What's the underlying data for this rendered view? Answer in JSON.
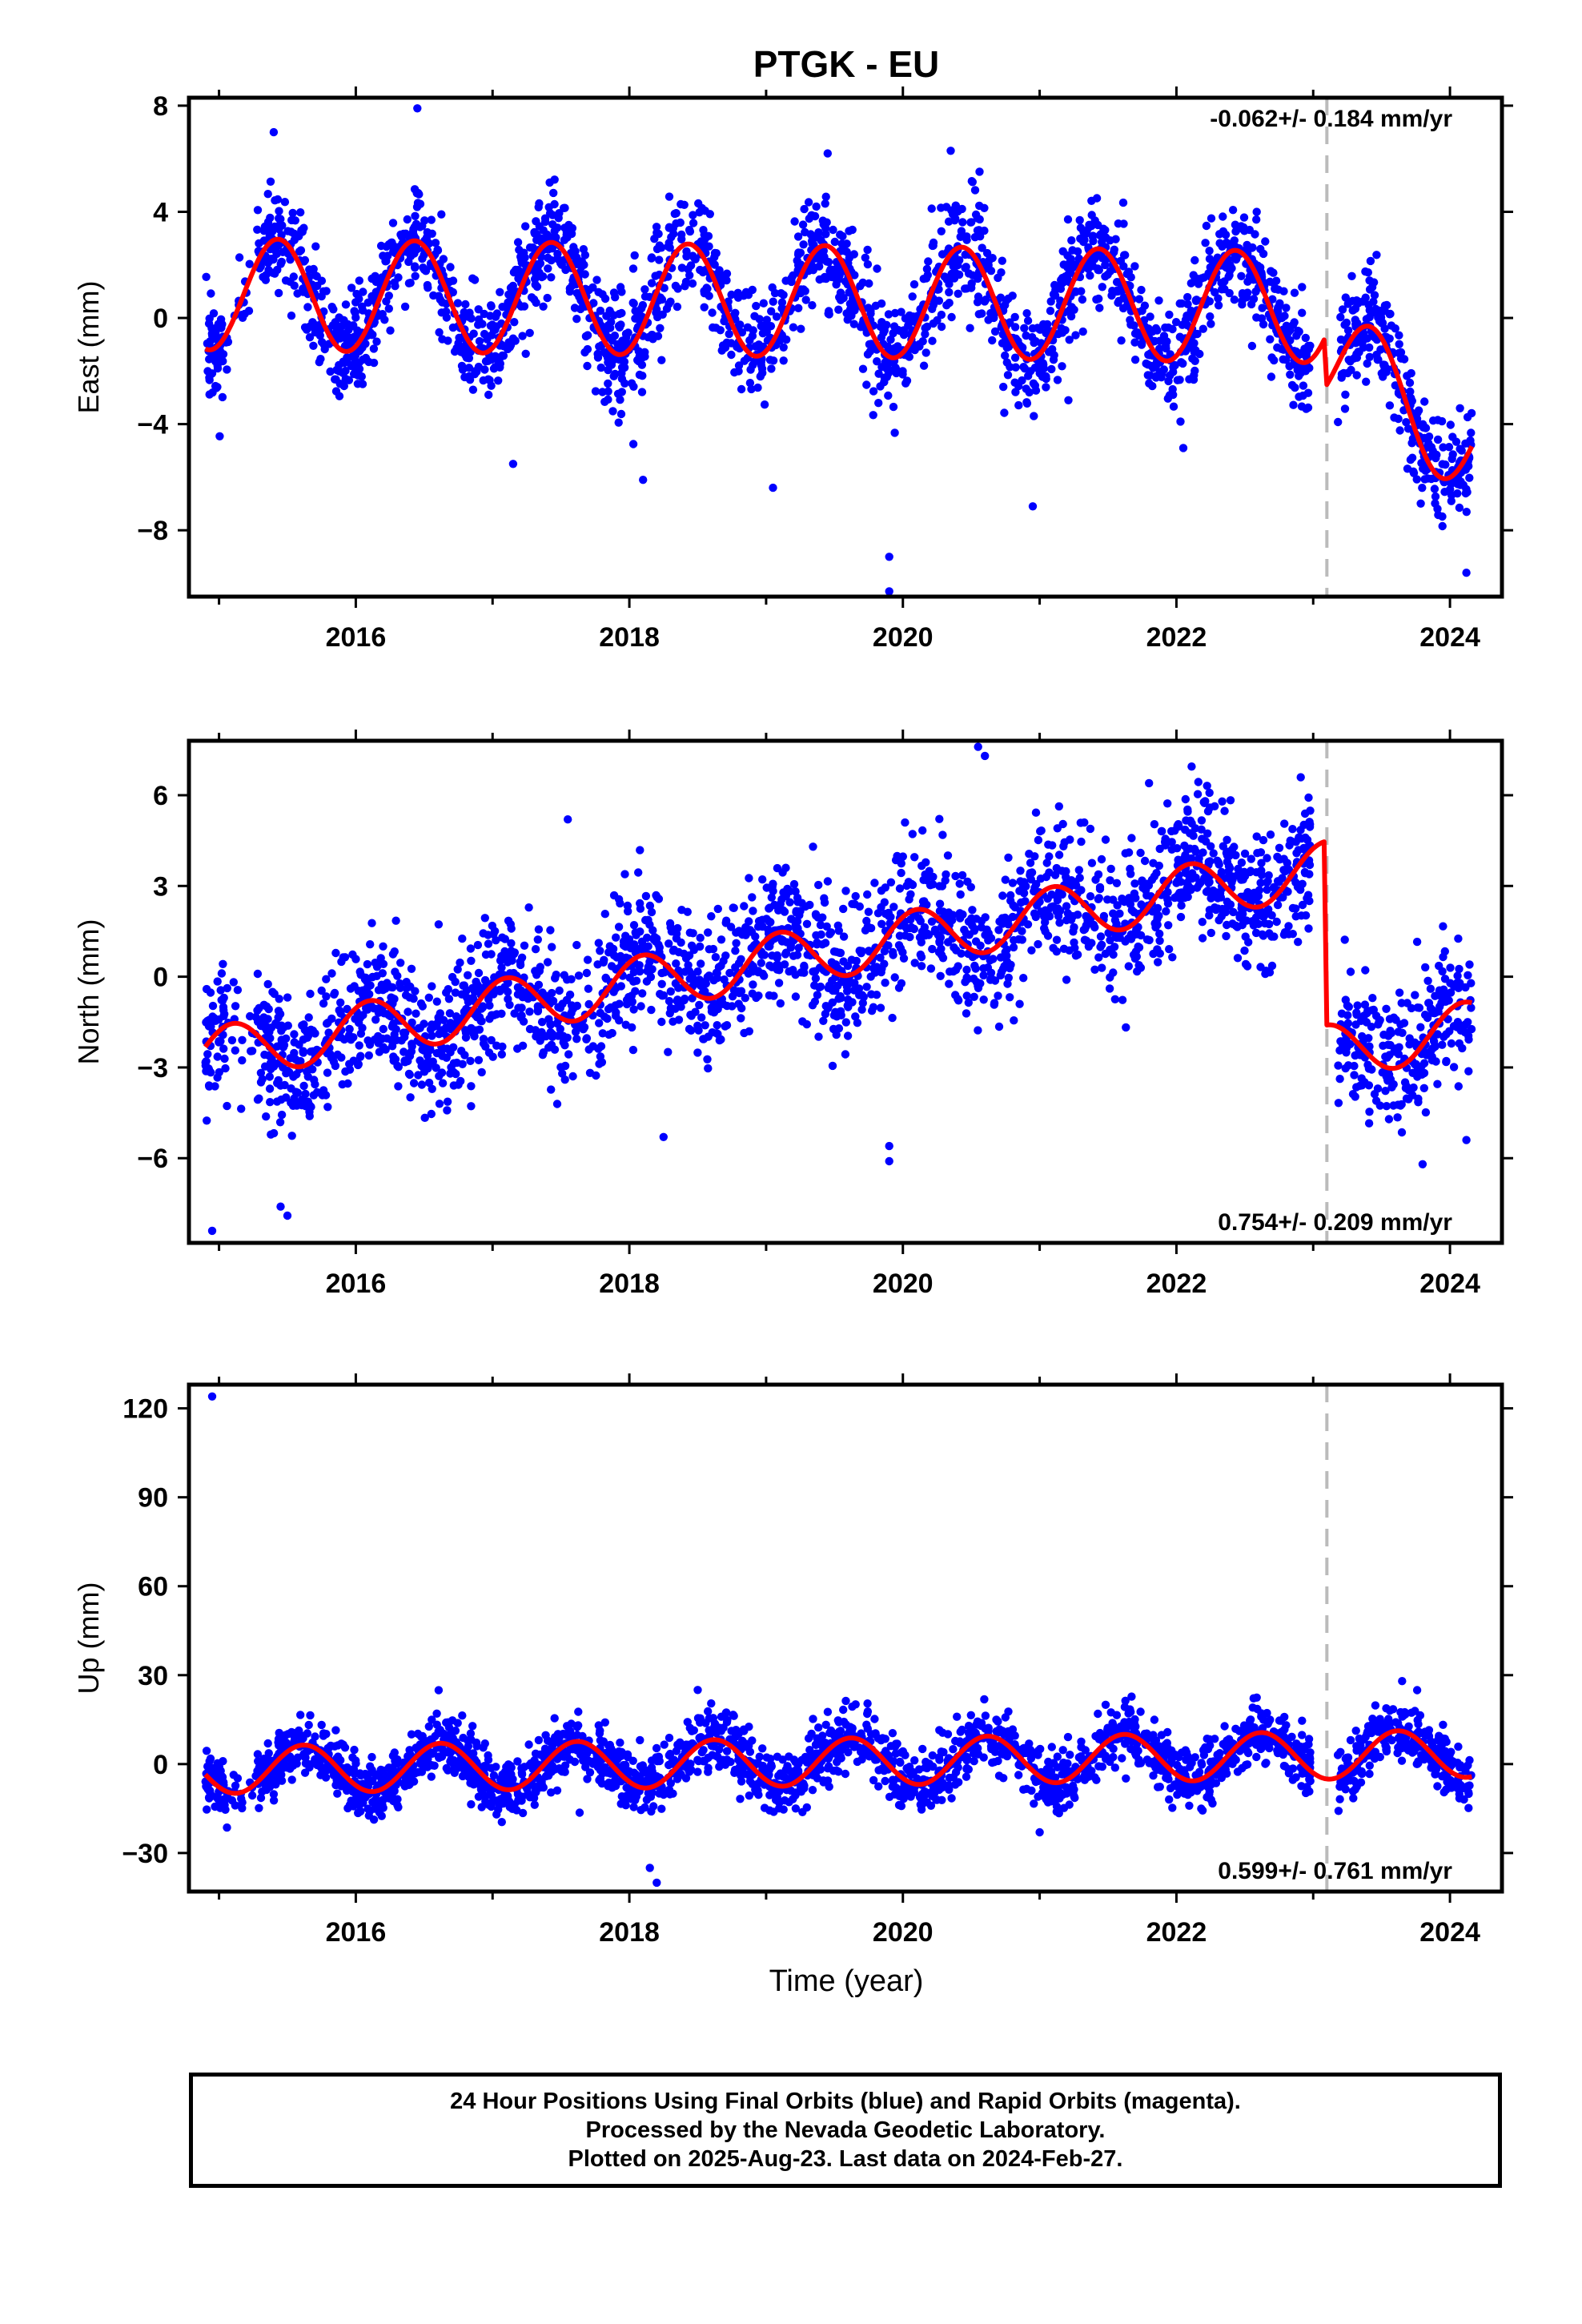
{
  "title": "PTGK - EU",
  "xlabel": "Time (year)",
  "footer": {
    "line1": "24 Hour Positions Using Final Orbits (blue) and Rapid Orbits (magenta).",
    "line2": "Processed by the Nevada Geodetic Laboratory.",
    "line3": "Plotted on 2025-Aug-23. Last data on 2024-Feb-27."
  },
  "colors": {
    "points": "#0000ff",
    "model": "#ff0000",
    "event_line": "#bbbbbb",
    "axis": "#000000"
  },
  "chart_data": [
    {
      "type": "scatter",
      "component": "East",
      "ylabel": "East (mm)",
      "rate_label": "-0.062+/- 0.184 mm/yr",
      "rate_position": "top-right",
      "xlim": [
        2014.78,
        2024.38
      ],
      "ylim": [
        -10.5,
        8.3
      ],
      "x_ticks": [
        2016,
        2018,
        2020,
        2022,
        2024
      ],
      "x_tick_labels": [
        "2016",
        "2018",
        "2020",
        "2022",
        "2024"
      ],
      "y_ticks": [
        -8,
        -4,
        0,
        4,
        8
      ],
      "y_tick_labels": [
        "−8",
        "−4",
        "0",
        "4",
        "8"
      ],
      "event_line_x": 2023.1,
      "model": {
        "segments": [
          {
            "from": 2014.9,
            "to": 2023.08,
            "offset": 0.9,
            "slope": -0.06,
            "amp": 2.1,
            "peak": 2015.43
          },
          {
            "from": 2023.1,
            "to": 2024.16,
            "offset": -1.5,
            "slope": -2.9,
            "amp": 2.1,
            "peak": 2023.43
          }
        ]
      },
      "series": [
        {
          "points_approx": true,
          "x_range": [
            2014.9,
            2024.16
          ],
          "scatter_sd": 1.0,
          "outliers": [
            [
              2015.4,
              7.0
            ],
            [
              2016.45,
              7.9
            ],
            [
              2019.45,
              6.2
            ],
            [
              2020.35,
              6.3
            ],
            [
              2019.9,
              -9.0
            ],
            [
              2019.9,
              -10.3
            ],
            [
              2020.95,
              -7.1
            ],
            [
              2018.1,
              -6.1
            ],
            [
              2019.05,
              -6.4
            ],
            [
              2024.12,
              -9.6
            ],
            [
              2017.15,
              -5.5
            ],
            [
              2022.05,
              -4.9
            ]
          ]
        }
      ]
    },
    {
      "type": "scatter",
      "component": "North",
      "ylabel": "North (mm)",
      "rate_label": "0.754+/- 0.209 mm/yr",
      "rate_position": "bottom-right",
      "xlim": [
        2014.78,
        2024.38
      ],
      "ylim": [
        -8.8,
        7.8
      ],
      "x_ticks": [
        2016,
        2018,
        2020,
        2022,
        2024
      ],
      "x_tick_labels": [
        "2016",
        "2018",
        "2020",
        "2022",
        "2024"
      ],
      "y_ticks": [
        -6,
        -3,
        0,
        3,
        6
      ],
      "y_tick_labels": [
        "−6",
        "−3",
        "0",
        "3",
        "6"
      ],
      "event_line_x": 2023.1,
      "model": {
        "segments": [
          {
            "from": 2014.9,
            "to": 2023.08,
            "offset": -2.6,
            "slope": 0.754,
            "amp": 0.9,
            "peak": 2015.1
          },
          {
            "from": 2023.1,
            "to": 2024.16,
            "offset": -2.5,
            "slope": 0.754,
            "amp": 0.9,
            "peak": 2024.1
          }
        ]
      },
      "series": [
        {
          "points_approx": true,
          "x_range": [
            2014.9,
            2024.16
          ],
          "scatter_sd": 1.1,
          "outliers": [
            [
              2014.95,
              -8.4
            ],
            [
              2015.5,
              -7.9
            ],
            [
              2015.45,
              -7.6
            ],
            [
              2017.55,
              5.2
            ],
            [
              2019.9,
              -5.6
            ],
            [
              2019.9,
              -6.1
            ],
            [
              2020.55,
              7.6
            ],
            [
              2020.6,
              7.3
            ],
            [
              2021.8,
              6.4
            ],
            [
              2023.8,
              -6.2
            ],
            [
              2024.12,
              -5.4
            ],
            [
              2018.25,
              -5.3
            ]
          ]
        }
      ]
    },
    {
      "type": "scatter",
      "component": "Up",
      "ylabel": "Up (mm)",
      "rate_label": "0.599+/- 0.761 mm/yr",
      "rate_position": "bottom-right",
      "xlim": [
        2014.78,
        2024.38
      ],
      "ylim": [
        -43,
        128
      ],
      "x_ticks": [
        2016,
        2018,
        2020,
        2022,
        2024
      ],
      "x_tick_labels": [
        "2016",
        "2018",
        "2020",
        "2022",
        "2024"
      ],
      "y_ticks": [
        -30,
        0,
        30,
        60,
        90,
        120
      ],
      "y_tick_labels": [
        "−30",
        "0",
        "30",
        "60",
        "90",
        "120"
      ],
      "event_line_x": 2023.1,
      "model": {
        "segments": [
          {
            "from": 2014.9,
            "to": 2024.16,
            "offset": -2.0,
            "slope": 0.599,
            "amp": 8.0,
            "peak": 2015.62
          }
        ]
      },
      "series": [
        {
          "points_approx": true,
          "x_range": [
            2014.9,
            2024.16
          ],
          "scatter_sd": 5.0,
          "outliers": [
            [
              2014.95,
              124
            ],
            [
              2018.2,
              -40
            ],
            [
              2018.5,
              25
            ],
            [
              2023.65,
              28
            ],
            [
              2018.15,
              -35
            ],
            [
              2021.0,
              -23
            ]
          ]
        }
      ]
    }
  ]
}
